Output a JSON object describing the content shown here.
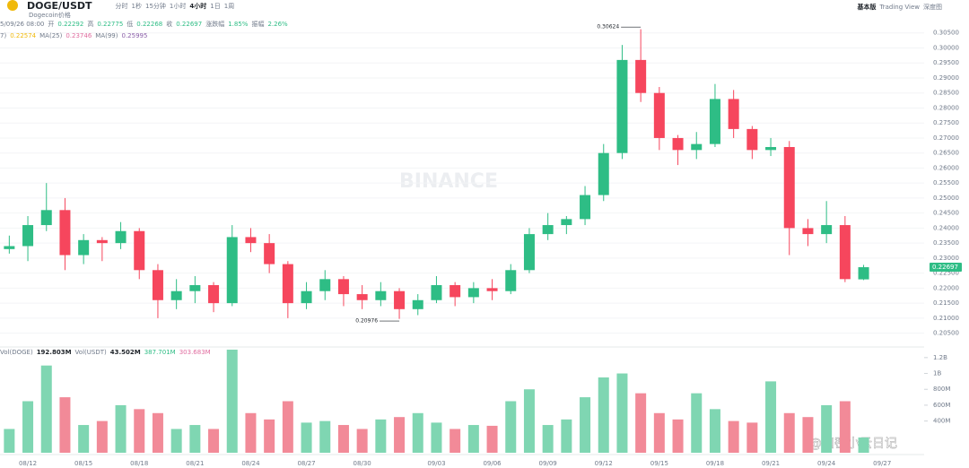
{
  "header": {
    "symbol": "DOGE/USDT",
    "subtitle": "Dogecoin价格",
    "intervals": [
      "分时",
      "1秒",
      "15分钟",
      "1小时",
      "4小时",
      "1日",
      "1周"
    ],
    "views": [
      "基本版",
      "Trading View",
      "深度图"
    ],
    "ohlc": [
      "5/09/26 08:00",
      "开",
      "0.22292",
      "高",
      "0.22775",
      "低",
      "0.22268",
      "收",
      "0.22697",
      "涨跌幅",
      "1.85%",
      "振幅",
      "2.26%"
    ],
    "ma": [
      "7)",
      "0.22574",
      "MA(25)",
      "0.23746",
      "MA(99)",
      "0.25995"
    ],
    "volume": [
      "Vol(DOGE)",
      "192.803M",
      "Vol(USDT)",
      "43.502M",
      "387.701M",
      "303.683M"
    ],
    "watermark": "BINANCE",
    "credit": "@加密小云日记"
  },
  "chart_data": [
    {
      "type": "candlestick",
      "up_color": "#2ebd85",
      "down_color": "#f6465d",
      "categories": [
        null,
        "08/12",
        null,
        null,
        "08/15",
        null,
        null,
        "08/18",
        null,
        null,
        "08/21",
        null,
        null,
        "08/24",
        null,
        null,
        "08/27",
        null,
        null,
        "08/30",
        null,
        null,
        null,
        "09/03",
        null,
        null,
        "09/06",
        null,
        null,
        "09/09",
        null,
        null,
        "09/12",
        null,
        null,
        "09/15",
        null,
        null,
        "09/18",
        null,
        null,
        "09/21",
        null,
        null,
        "09/24",
        null,
        null,
        "09/27"
      ],
      "open": [
        0.233,
        0.234,
        0.241,
        0.246,
        0.231,
        0.236,
        0.235,
        0.239,
        0.226,
        0.216,
        0.219,
        0.221,
        0.215,
        0.237,
        0.235,
        0.228,
        0.215,
        0.219,
        0.223,
        0.218,
        0.216,
        0.219,
        0.213,
        0.216,
        0.221,
        0.217,
        0.22,
        0.219,
        0.226,
        0.238,
        0.241,
        0.243,
        0.251,
        0.265,
        0.296,
        0.285,
        0.27,
        0.266,
        0.268,
        0.283,
        0.273,
        0.266,
        0.267,
        0.24,
        0.238,
        0.241,
        0.22292,
        null
      ],
      "high": [
        0.2375,
        0.244,
        0.255,
        0.25,
        0.238,
        0.237,
        0.242,
        0.24,
        0.228,
        0.223,
        0.224,
        0.222,
        0.241,
        0.24,
        0.238,
        0.229,
        0.222,
        0.226,
        0.224,
        0.221,
        0.222,
        0.22,
        0.218,
        0.224,
        0.222,
        0.222,
        0.223,
        0.228,
        0.24,
        0.245,
        0.244,
        0.254,
        0.268,
        0.301,
        0.30624,
        0.287,
        0.271,
        0.272,
        0.288,
        0.286,
        0.274,
        0.27,
        0.269,
        0.243,
        0.249,
        0.244,
        0.22775,
        null
      ],
      "low": [
        0.2315,
        0.229,
        0.239,
        0.226,
        0.228,
        0.229,
        0.233,
        0.223,
        0.21,
        0.213,
        0.215,
        0.212,
        0.214,
        0.232,
        0.225,
        0.21,
        0.213,
        0.216,
        0.214,
        0.213,
        0.214,
        0.20976,
        0.211,
        0.215,
        0.214,
        0.215,
        0.216,
        0.218,
        0.225,
        0.236,
        0.238,
        0.241,
        0.249,
        0.263,
        0.282,
        0.266,
        0.261,
        0.263,
        0.267,
        0.27,
        0.263,
        0.264,
        0.231,
        0.234,
        0.235,
        0.222,
        0.22268,
        null
      ],
      "close": [
        0.234,
        0.241,
        0.246,
        0.231,
        0.236,
        0.235,
        0.239,
        0.226,
        0.216,
        0.219,
        0.221,
        0.215,
        0.237,
        0.235,
        0.228,
        0.215,
        0.219,
        0.223,
        0.218,
        0.216,
        0.219,
        0.213,
        0.216,
        0.221,
        0.217,
        0.22,
        0.219,
        0.226,
        0.238,
        0.241,
        0.243,
        0.251,
        0.265,
        0.296,
        0.285,
        0.27,
        0.266,
        0.268,
        0.283,
        0.273,
        0.266,
        0.267,
        0.24,
        0.238,
        0.241,
        0.223,
        0.22697,
        null
      ],
      "ylim": [
        0.201,
        0.31
      ],
      "yticks": [
        {
          "value": 0.205,
          "label": "0.20500"
        },
        {
          "value": 0.21,
          "label": "0.21000"
        },
        {
          "value": 0.215,
          "label": "0.21500"
        },
        {
          "value": 0.22,
          "label": "0.22000"
        },
        {
          "value": 0.225,
          "label": "0.22500"
        },
        {
          "value": 0.23,
          "label": "0.23000"
        },
        {
          "value": 0.235,
          "label": "0.23500"
        },
        {
          "value": 0.24,
          "label": "0.24000"
        },
        {
          "value": 0.245,
          "label": "0.24500"
        },
        {
          "value": 0.25,
          "label": "0.25000"
        },
        {
          "value": 0.255,
          "label": "0.25500"
        },
        {
          "value": 0.26,
          "label": "0.26000"
        },
        {
          "value": 0.265,
          "label": "0.26500"
        },
        {
          "value": 0.27,
          "label": "0.27000"
        },
        {
          "value": 0.275,
          "label": "0.27500"
        },
        {
          "value": 0.28,
          "label": "0.28000"
        },
        {
          "value": 0.285,
          "label": "0.28500"
        },
        {
          "value": 0.29,
          "label": "0.29000"
        },
        {
          "value": 0.295,
          "label": "0.29500"
        },
        {
          "value": 0.3,
          "label": "0.30000"
        },
        {
          "value": 0.305,
          "label": "0.30500"
        }
      ],
      "grid": true,
      "annotations": [
        "0.30624",
        "0.20976"
      ],
      "last_price": {
        "value": 0.22697,
        "label": "0.22697"
      }
    },
    {
      "type": "bar",
      "up_color": "#7fd6b2",
      "down_color": "#f28a98",
      "values": [
        300000000,
        650000000,
        1100000000,
        700000000,
        350000000,
        400000000,
        600000000,
        550000000,
        500000000,
        300000000,
        350000000,
        300000000,
        1300000000,
        500000000,
        420000000,
        650000000,
        380000000,
        400000000,
        350000000,
        300000000,
        420000000,
        450000000,
        500000000,
        380000000,
        300000000,
        350000000,
        340000000,
        650000000,
        800000000,
        350000000,
        420000000,
        700000000,
        950000000,
        1000000000,
        750000000,
        500000000,
        420000000,
        750000000,
        550000000,
        400000000,
        380000000,
        900000000,
        500000000,
        450000000,
        600000000,
        650000000,
        192803000,
        null
      ],
      "ylim": [
        0,
        1300000000
      ],
      "yticks": [
        {
          "value": 400000000,
          "label": "400M"
        },
        {
          "value": 600000000,
          "label": "600M"
        },
        {
          "value": 800000000,
          "label": "800M"
        },
        {
          "value": 1000000000,
          "label": "1B"
        },
        {
          "value": 1200000000,
          "label": "1.2B"
        }
      ]
    }
  ]
}
